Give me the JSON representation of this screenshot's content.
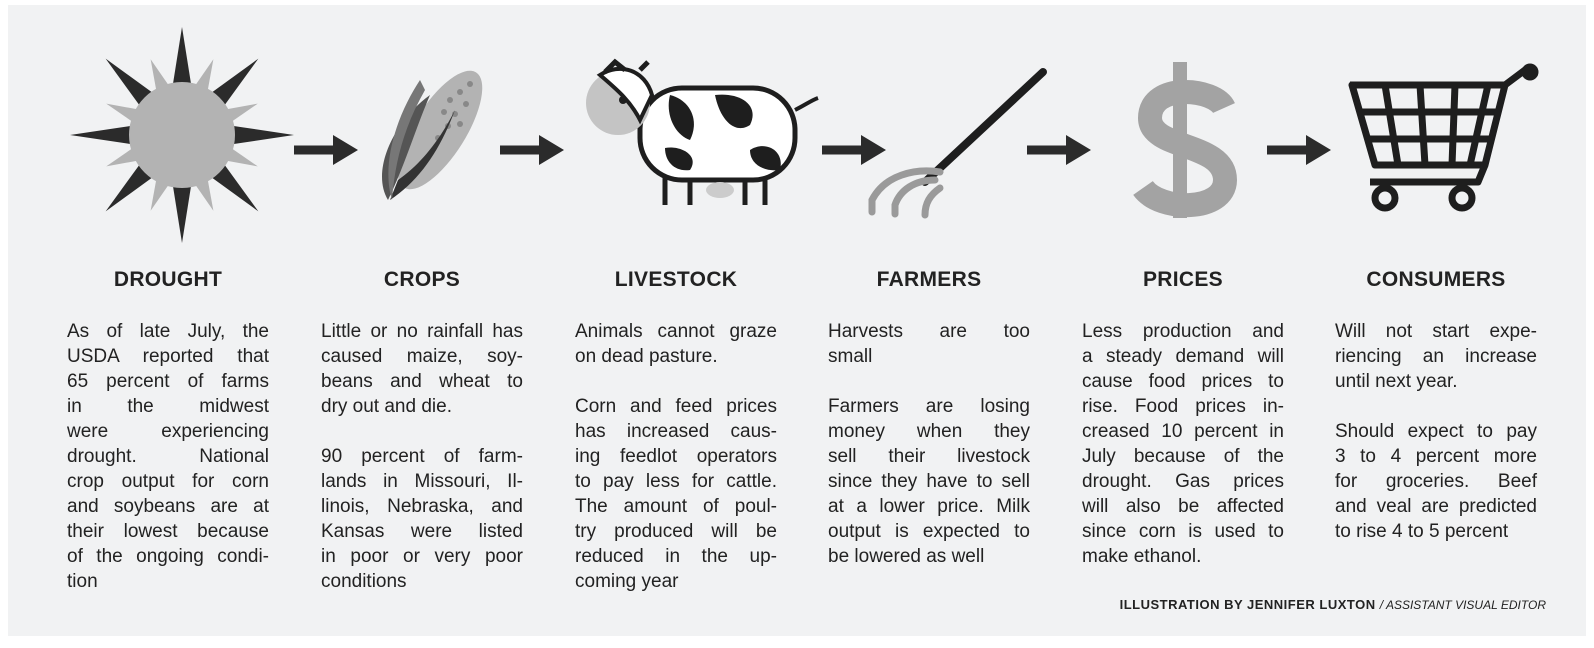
{
  "columns": [
    {
      "heading": "DROUGHT",
      "paragraphs": [
        [
          "As of late July, the",
          "USDA reported that",
          "65 percent of farms",
          "in the midwest",
          "were experiencing",
          "drought. National",
          "crop output for corn",
          "and soybeans are at",
          "their lowest because",
          "of the ongoing condi-",
          "tion"
        ]
      ]
    },
    {
      "heading": "CROPS",
      "paragraphs": [
        [
          "Little or no rainfall has",
          "caused maize, soy-",
          "beans and wheat to",
          "dry out and die."
        ],
        [
          "90 percent of farm-",
          "lands in Missouri, Il-",
          "linois, Nebraska, and",
          "Kansas were listed",
          "in poor or very poor",
          "conditions"
        ]
      ]
    },
    {
      "heading": "LIVESTOCK",
      "paragraphs": [
        [
          "Animals cannot graze",
          "on dead pasture."
        ],
        [
          "Corn and feed prices",
          "has increased caus-",
          "ing feedlot operators",
          "to pay less for cattle.",
          "The amount of poul-",
          "try produced will be",
          "reduced in the up-",
          "coming year"
        ]
      ]
    },
    {
      "heading": "FARMERS",
      "paragraphs": [
        [
          "Harvests are too",
          "small"
        ],
        [
          "Farmers are losing",
          "money when they",
          "sell their livestock",
          "since they have to sell",
          "at a lower price. Milk",
          "output is expected to",
          "be lowered as well"
        ]
      ]
    },
    {
      "heading": "PRICES",
      "paragraphs": [
        [
          "Less production and",
          "a steady demand will",
          "cause food prices to",
          "rise. Food prices in-",
          "creased 10 percent in",
          "July because of the",
          "drought. Gas prices",
          "will also be affected",
          "since corn is used to",
          "make ethanol."
        ]
      ]
    },
    {
      "heading": "CONSUMERS",
      "paragraphs": [
        [
          "Will not start expe-",
          "riencing an increase",
          "until next year."
        ],
        [
          "Should expect to pay",
          "3 to 4 percent more",
          "for groceries. Beef",
          "and veal are predicted",
          "to rise 4 to 5 percent"
        ]
      ]
    }
  ],
  "credit": {
    "name": "ILLUSTRATION BY JENNIFER LUXTON",
    "role": "/ ASSISTANT VISUAL EDITOR"
  }
}
